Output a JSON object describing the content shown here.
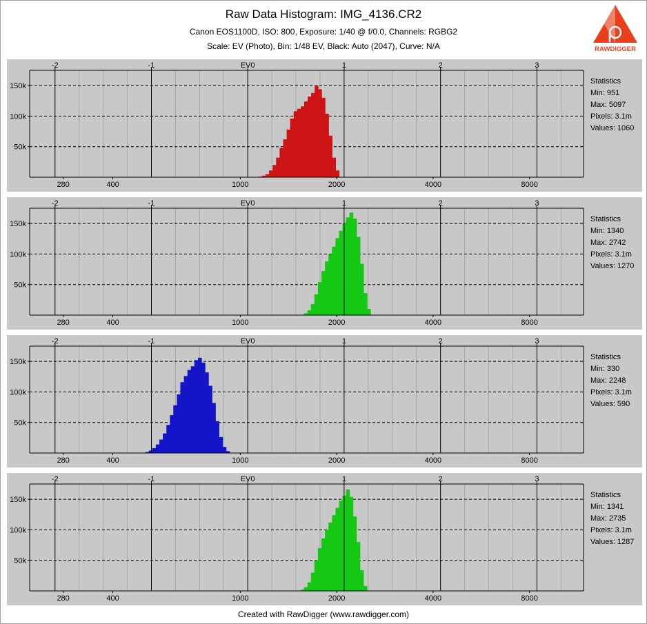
{
  "header": {
    "title": "Raw Data Histogram: IMG_4136.CR2",
    "subtitle1": "Canon EOS1100D, ISO: 800, Exposure: 1/40 @ f/0.0, Channels: RGBG2",
    "subtitle2": "Scale: EV (Photo), Bin: 1/48 EV, Black: Auto (2047), Curve: N/A"
  },
  "logo": {
    "text": "RAWDIGGER",
    "color": "#e8401c"
  },
  "footer": "Created with RawDigger (www.rawdigger.com)",
  "stats_label": "Statistics",
  "chart_data": [
    {
      "type": "bar",
      "channel": "R",
      "color": "#cc1414",
      "x_scale": "log2",
      "xlim": [
        220,
        11800
      ],
      "ylim": [
        0,
        175000
      ],
      "top_ticks": [
        "-2",
        "-1",
        "EV0",
        "1",
        "2",
        "3"
      ],
      "top_tick_values": [
        264,
        528,
        1055,
        2110,
        4220,
        8440
      ],
      "bottom_ticks": [
        "280",
        "400",
        "1000",
        "2000",
        "4000",
        "8000"
      ],
      "bottom_tick_values": [
        280,
        400,
        1000,
        2000,
        4000,
        8000
      ],
      "y_ticks": [
        "50k",
        "100k",
        "150k"
      ],
      "y_tick_values": [
        50000,
        100000,
        150000
      ],
      "x": [
        1141,
        1170,
        1200,
        1230,
        1262,
        1294,
        1327,
        1361,
        1396,
        1431,
        1468,
        1505,
        1544,
        1583,
        1623,
        1665,
        1707,
        1751,
        1795,
        1841,
        1888,
        1936,
        1986
      ],
      "values": [
        1000,
        2500,
        5000,
        11000,
        20000,
        32000,
        48000,
        62000,
        78000,
        96000,
        108000,
        112000,
        116000,
        124000,
        132000,
        138000,
        150000,
        144000,
        130000,
        104000,
        68000,
        32000,
        11000
      ],
      "stats": {
        "min": "Min: 951",
        "max": "Max: 5097",
        "pixels": "Pixels: 3.1m",
        "values": "Values: 1060"
      }
    },
    {
      "type": "bar",
      "channel": "G",
      "color": "#14c814",
      "x_scale": "log2",
      "xlim": [
        220,
        11800
      ],
      "ylim": [
        0,
        175000
      ],
      "top_ticks": [
        "-2",
        "-1",
        "EV0",
        "1",
        "2",
        "3"
      ],
      "top_tick_values": [
        264,
        528,
        1055,
        2110,
        4220,
        8440
      ],
      "bottom_ticks": [
        "280",
        "400",
        "1000",
        "2000",
        "4000",
        "8000"
      ],
      "bottom_tick_values": [
        280,
        400,
        1000,
        2000,
        4000,
        8000
      ],
      "y_ticks": [
        "50k",
        "100k",
        "150k"
      ],
      "y_tick_values": [
        50000,
        100000,
        150000
      ],
      "x": [
        1580,
        1621,
        1662,
        1704,
        1748,
        1793,
        1839,
        1886,
        1934,
        1983,
        2034,
        2086,
        2139,
        2194,
        2250,
        2307,
        2366,
        2426,
        2488
      ],
      "values": [
        3000,
        8000,
        18000,
        34000,
        54000,
        72000,
        88000,
        100000,
        112000,
        126000,
        138000,
        150000,
        160000,
        168000,
        158000,
        128000,
        84000,
        36000,
        10000
      ],
      "stats": {
        "min": "Min: 1340",
        "max": "Max: 2742",
        "pixels": "Pixels: 3.1m",
        "values": "Values: 1270"
      }
    },
    {
      "type": "bar",
      "channel": "B",
      "color": "#1414c8",
      "x_scale": "log2",
      "xlim": [
        220,
        11800
      ],
      "ylim": [
        0,
        175000
      ],
      "top_ticks": [
        "-2",
        "-1",
        "EV0",
        "1",
        "2",
        "3"
      ],
      "top_tick_values": [
        264,
        528,
        1055,
        2110,
        4220,
        8440
      ],
      "bottom_ticks": [
        "280",
        "400",
        "1000",
        "2000",
        "4000",
        "8000"
      ],
      "bottom_tick_values": [
        280,
        400,
        1000,
        2000,
        4000,
        8000
      ],
      "y_ticks": [
        "50k",
        "100k",
        "150k"
      ],
      "y_tick_values": [
        50000,
        100000,
        150000
      ],
      "x": [
        505,
        518,
        531,
        545,
        559,
        573,
        588,
        603,
        618,
        634,
        650,
        667,
        684,
        701,
        719,
        738,
        757,
        776,
        796,
        816,
        837,
        859,
        881,
        903
      ],
      "values": [
        1500,
        4000,
        8000,
        14000,
        22000,
        32000,
        46000,
        62000,
        78000,
        96000,
        116000,
        126000,
        136000,
        142000,
        152000,
        156000,
        148000,
        132000,
        110000,
        82000,
        52000,
        26000,
        10000,
        3000
      ],
      "stats": {
        "min": "Min: 330",
        "max": "Max: 2248",
        "pixels": "Pixels: 3.1m",
        "values": "Values: 590"
      }
    },
    {
      "type": "bar",
      "channel": "G2",
      "color": "#14c814",
      "x_scale": "log2",
      "xlim": [
        220,
        11800
      ],
      "ylim": [
        0,
        175000
      ],
      "top_ticks": [
        "-2",
        "-1",
        "EV0",
        "1",
        "2",
        "3"
      ],
      "top_tick_values": [
        264,
        528,
        1055,
        2110,
        4220,
        8440
      ],
      "bottom_ticks": [
        "280",
        "400",
        "1000",
        "2000",
        "4000",
        "8000"
      ],
      "bottom_tick_values": [
        280,
        400,
        1000,
        2000,
        4000,
        8000
      ],
      "y_ticks": [
        "50k",
        "100k",
        "150k"
      ],
      "y_tick_values": [
        50000,
        100000,
        150000
      ],
      "x": [
        1541,
        1580,
        1621,
        1662,
        1704,
        1748,
        1793,
        1839,
        1886,
        1934,
        1983,
        2034,
        2086,
        2139,
        2194,
        2250,
        2307,
        2366,
        2426
      ],
      "values": [
        2000,
        6000,
        14000,
        30000,
        50000,
        70000,
        86000,
        100000,
        112000,
        124000,
        136000,
        148000,
        156000,
        166000,
        154000,
        122000,
        80000,
        34000,
        8000
      ],
      "stats": {
        "min": "Min: 1341",
        "max": "Max: 2735",
        "pixels": "Pixels: 3.1m",
        "values": "Values: 1287"
      }
    }
  ]
}
